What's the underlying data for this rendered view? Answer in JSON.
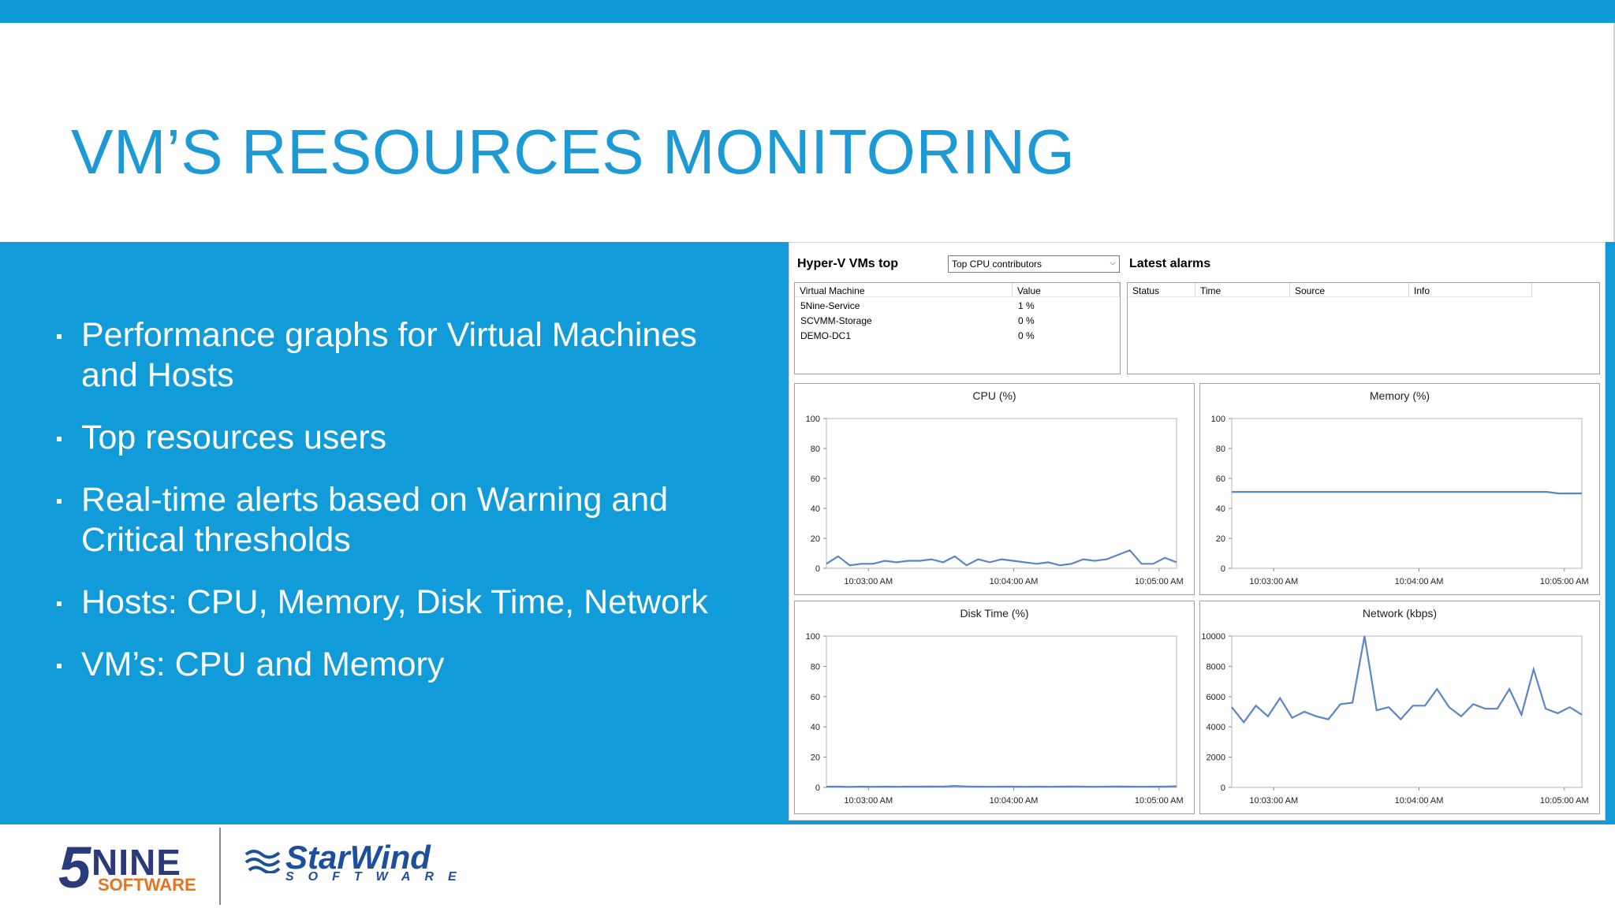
{
  "slide": {
    "title": "VM’S RESOURCES MONITORING",
    "bullets": [
      {
        "line1": "Performance graphs for Virtual Machines",
        "line2": "and Hosts"
      },
      {
        "line1": "Top resources users",
        "line2": ""
      },
      {
        "line1": "Real-time alerts based on Warning and",
        "line2": "Critical thresholds"
      },
      {
        "line1": "Hosts: CPU, Memory, Disk Time, Network",
        "line2": ""
      },
      {
        "line1": "VM’s: CPU and Memory",
        "line2": ""
      }
    ],
    "colors": {
      "accent": "#119bd9",
      "title": "#1d9ad6"
    }
  },
  "logos": {
    "fivenine_digit": "5",
    "fivenine_word": "NINE",
    "fivenine_sub": "SOFTWARE",
    "starwind_word": "StarWind",
    "starwind_sub": "SOFTWARE"
  },
  "app": {
    "vms_top_title": "Hyper-V VMs top",
    "selector_value": "Top CPU contributors",
    "alarms_title": "Latest alarms",
    "vm_table": {
      "columns": [
        "Virtual Machine",
        "Value"
      ],
      "rows": [
        [
          "5Nine-Service",
          "1 %"
        ],
        [
          "SCVMM-Storage",
          "0 %"
        ],
        [
          "DEMO-DC1",
          "0 %"
        ]
      ]
    },
    "alarm_table": {
      "columns": [
        "Status",
        "Time",
        "Source",
        "Info"
      ],
      "rows": []
    }
  },
  "chart_data": [
    {
      "type": "line",
      "title": "CPU (%)",
      "x_ticks": [
        "10:03:00 AM",
        "10:04:00 AM",
        "10:05:00 AM"
      ],
      "y_ticks": [
        "0",
        "20",
        "40",
        "60",
        "80",
        "100"
      ],
      "ylim": [
        0,
        100
      ],
      "values": [
        3,
        8,
        2,
        3,
        3,
        5,
        4,
        5,
        5,
        6,
        4,
        8,
        2,
        6,
        4,
        6,
        5,
        4,
        3,
        4,
        2,
        3,
        6,
        5,
        6,
        9,
        12,
        3,
        3,
        7,
        4
      ]
    },
    {
      "type": "line",
      "title": "Memory (%)",
      "x_ticks": [
        "10:03:00 AM",
        "10:04:00 AM",
        "10:05:00 AM"
      ],
      "y_ticks": [
        "0",
        "20",
        "40",
        "60",
        "80",
        "100"
      ],
      "ylim": [
        0,
        100
      ],
      "values": [
        51,
        51,
        51,
        51,
        51,
        51,
        51,
        51,
        51,
        51,
        51,
        51,
        51,
        51,
        51,
        51,
        51,
        51,
        51,
        51,
        51,
        51,
        51,
        51,
        51,
        51,
        51,
        51,
        50,
        50,
        50
      ]
    },
    {
      "type": "line",
      "title": "Disk Time (%)",
      "x_ticks": [
        "10:03:00 AM",
        "10:04:00 AM",
        "10:05:00 AM"
      ],
      "y_ticks": [
        "0",
        "20",
        "40",
        "60",
        "80",
        "100"
      ],
      "ylim": [
        0,
        100
      ],
      "values": [
        0.5,
        0.5,
        0.3,
        0.5,
        0.4,
        0.5,
        0.4,
        0.5,
        0.5,
        0.6,
        0.5,
        1,
        0.6,
        0.5,
        0.4,
        0.5,
        0.5,
        0.4,
        0.5,
        0.4,
        0.5,
        0.6,
        0.5,
        0.4,
        0.5,
        0.6,
        0.5,
        0.4,
        0.5,
        0.5,
        0.8
      ]
    },
    {
      "type": "line",
      "title": "Network (kbps)",
      "x_ticks": [
        "10:03:00 AM",
        "10:04:00 AM",
        "10:05:00 AM"
      ],
      "y_ticks": [
        "0",
        "2000",
        "4000",
        "6000",
        "8000",
        "10000"
      ],
      "ylim": [
        0,
        10000
      ],
      "values": [
        5300,
        4300,
        5400,
        4700,
        5900,
        4600,
        5000,
        4700,
        4500,
        5500,
        5600,
        10000,
        5100,
        5300,
        4500,
        5400,
        5400,
        6500,
        5300,
        4700,
        5500,
        5200,
        5200,
        6500,
        4800,
        7800,
        5200,
        4900,
        5300,
        4800
      ]
    }
  ]
}
